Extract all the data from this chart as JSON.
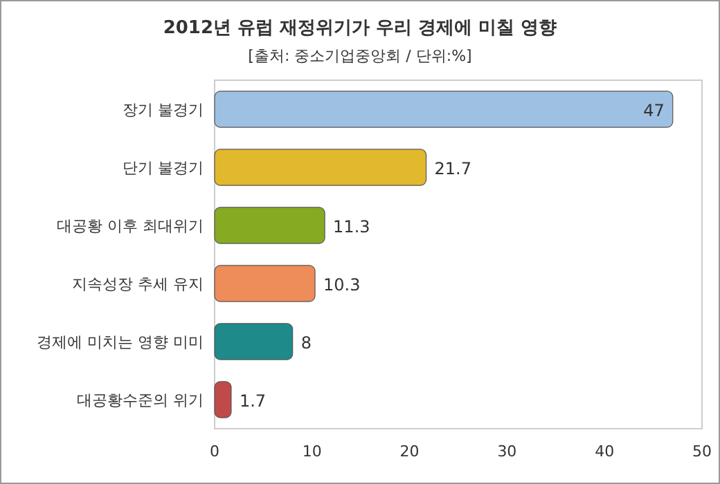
{
  "chart_data": {
    "type": "bar",
    "orientation": "horizontal",
    "title": "2012년 유럽 재정위기가 우리 경제에 미칠 영향",
    "subtitle": "[출처: 중소기업중앙회 / 단위:%]",
    "categories": [
      "장기 불경기",
      "단기 불경기",
      "대공황 이후 최대위기",
      "지속성장 추세 유지",
      "경제에 미치는 영향 미미",
      "대공황수준의 위기"
    ],
    "values": [
      47,
      21.7,
      11.3,
      10.3,
      8,
      1.7
    ],
    "colors": [
      "#9ec0e2",
      "#e2b82c",
      "#86aa22",
      "#ee8c5a",
      "#1e8a8a",
      "#c04a4a"
    ],
    "xlim": [
      0,
      50
    ],
    "xticks": [
      0,
      10,
      20,
      30,
      40,
      50
    ],
    "data_labels": true,
    "grid": false
  }
}
